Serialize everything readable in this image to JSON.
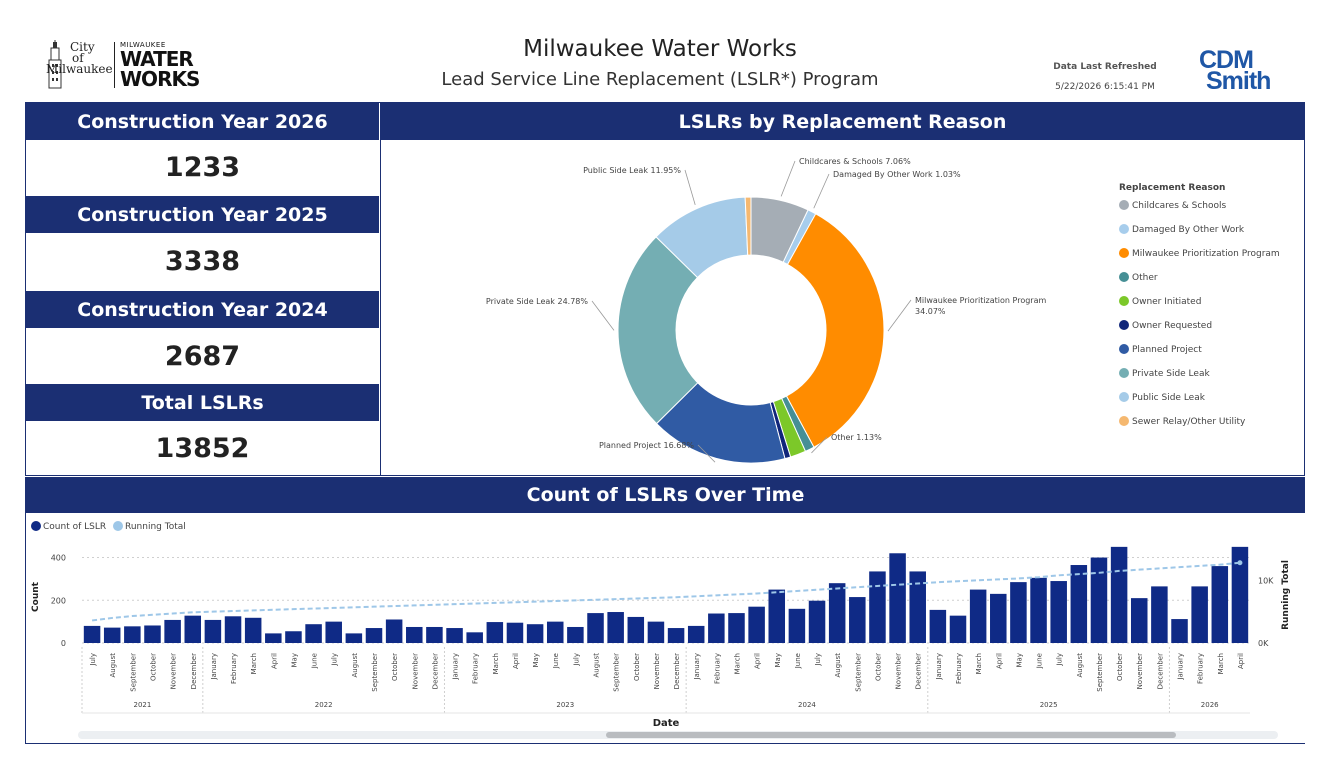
{
  "header": {
    "logo_city_lines": [
      "City",
      "of",
      "Milwaukee"
    ],
    "logo_water_small": "MILWAUKEE",
    "logo_water_big1": "WATER",
    "logo_water_big2": "WORKS",
    "title": "Milwaukee Water Works",
    "subtitle": "Lead Service Line Replacement (LSLR*) Program",
    "refresh_label": "Data Last Refreshed",
    "refresh_value": "5/22/2026 6:15:41 PM",
    "cdm_line1": "CDM",
    "cdm_line2": "Smith"
  },
  "kpis": [
    {
      "label": "Construction Year 2026",
      "value": "1233"
    },
    {
      "label": "Construction Year 2025",
      "value": "3338"
    },
    {
      "label": "Construction Year 2024",
      "value": "2687"
    },
    {
      "label": "Total LSLRs",
      "value": "13852"
    }
  ],
  "chart_data": [
    {
      "type": "pie",
      "title": "LSLRs by Replacement Reason",
      "legend_title": "Replacement Reason",
      "legend_position": "right",
      "slices": [
        {
          "name": "Childcares & Schools",
          "value": 7.06,
          "label": "Childcares & Schools 7.06%",
          "color": "#a5adb5"
        },
        {
          "name": "Damaged By Other Work",
          "value": 1.03,
          "label": "Damaged By Other Work 1.03%",
          "color": "#a7cdec"
        },
        {
          "name": "Milwaukee Prioritization Program",
          "value": 34.07,
          "label": "Milwaukee Prioritization Program 34.07%",
          "color": "#ff8c00"
        },
        {
          "name": "Other",
          "value": 1.13,
          "label": "Other 1.13%",
          "color": "#468f95"
        },
        {
          "name": "Owner Initiated",
          "value": 1.9,
          "label": "",
          "color": "#7cc829"
        },
        {
          "name": "Owner Requested",
          "value": 0.7,
          "label": "",
          "color": "#10267a"
        },
        {
          "name": "Planned Project",
          "value": 16.68,
          "label": "Planned Project 16.68%",
          "color": "#305ba4"
        },
        {
          "name": "Private Side Leak",
          "value": 24.78,
          "label": "Private Side Leak 24.78%",
          "color": "#74aeb3"
        },
        {
          "name": "Public Side Leak",
          "value": 11.95,
          "label": "Public Side Leak 11.95%",
          "color": "#a5cbe8"
        },
        {
          "name": "Sewer Relay/Other Utility",
          "value": 0.7,
          "label": "",
          "color": "#f5b870"
        }
      ],
      "legend_labels": [
        "Childcares & Schools",
        "Damaged By Other Work",
        "Milwaukee Prioritization Program",
        "Other",
        "Owner Initiated",
        "Owner Requested",
        "Planned Project",
        "Private Side Leak",
        "Public Side Leak",
        "Sewer Relay/Other Utility"
      ]
    },
    {
      "type": "bar",
      "title": "Count of LSLRs Over Time",
      "xlabel": "Date",
      "ylabel": "Count",
      "y2label": "Running Total",
      "ylim": [
        0,
        440
      ],
      "yticks": [
        "0",
        "200",
        "400"
      ],
      "y2lim": [
        0,
        15000
      ],
      "y2ticks": [
        {
          "value": 0,
          "label": "0K"
        },
        {
          "value": 10000,
          "label": "10K"
        }
      ],
      "legend_position": "top-left",
      "legend": [
        {
          "name": "Count of LSLR",
          "color": "#0f2a86"
        },
        {
          "name": "Running Total",
          "color": "#9ec7e8"
        }
      ],
      "years": [
        {
          "label": "2021",
          "months": 6
        },
        {
          "label": "2022",
          "months": 12
        },
        {
          "label": "2023",
          "months": 12
        },
        {
          "label": "2024",
          "months": 12
        },
        {
          "label": "2025",
          "months": 12
        },
        {
          "label": "2026",
          "months": 4
        }
      ],
      "categories": [
        "July",
        "August",
        "September",
        "October",
        "November",
        "December",
        "January",
        "February",
        "March",
        "April",
        "May",
        "June",
        "July",
        "August",
        "September",
        "October",
        "November",
        "December",
        "January",
        "February",
        "March",
        "April",
        "May",
        "June",
        "July",
        "August",
        "September",
        "October",
        "November",
        "December",
        "January",
        "February",
        "March",
        "April",
        "May",
        "June",
        "July",
        "August",
        "September",
        "October",
        "November",
        "December",
        "January",
        "February",
        "March",
        "April",
        "May",
        "June",
        "July",
        "August",
        "September",
        "October",
        "November",
        "December",
        "January",
        "February",
        "March",
        "April"
      ],
      "values": [
        80,
        72,
        78,
        82,
        108,
        128,
        108,
        125,
        118,
        45,
        55,
        88,
        100,
        45,
        70,
        110,
        75,
        75,
        70,
        50,
        98,
        95,
        88,
        100,
        75,
        140,
        145,
        122,
        100,
        70,
        80,
        138,
        140,
        170,
        250,
        160,
        198,
        280,
        215,
        335,
        420,
        335,
        155,
        128,
        250,
        230,
        285,
        305,
        290,
        365,
        400,
        450,
        210,
        265,
        112,
        265,
        360,
        450
      ],
      "running_total": [
        3600,
        4000,
        4300,
        4500,
        4700,
        4900,
        5000,
        5100,
        5200,
        5300,
        5400,
        5500,
        5600,
        5700,
        5800,
        5900,
        6000,
        6100,
        6200,
        6300,
        6400,
        6500,
        6600,
        6700,
        6800,
        6900,
        7000,
        7100,
        7200,
        7300,
        7450,
        7600,
        7750,
        7900,
        8100,
        8300,
        8500,
        8700,
        8900,
        9100,
        9300,
        9500,
        9700,
        9850,
        10000,
        10150,
        10300,
        10500,
        10800,
        11000,
        11200,
        11500,
        11700,
        11900,
        12100,
        12300,
        12500,
        12800
      ],
      "series": [
        {
          "name": "Count of LSLR"
        },
        {
          "name": "Running Total"
        }
      ]
    }
  ],
  "time_chart_x_months_note": ""
}
